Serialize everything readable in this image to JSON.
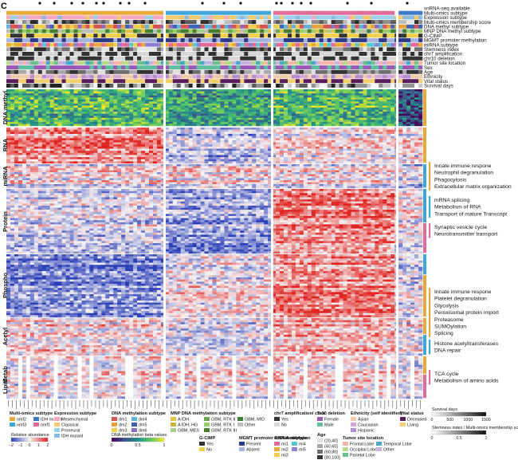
{
  "panel_letter": "C",
  "annotation_tracks": [
    "snRNA-seq available",
    "Multi-omics subtype",
    "Expression subtype",
    "Multi-omics membership score",
    "DNA methyl subtype",
    "MNP DNA methyl subtype",
    "G-CIMP",
    "MGMT promoter methylation",
    "miRNA subtype",
    "Stemness index",
    "chr7 amplification",
    "chr10 deletion",
    "Tumor site location",
    "Sex",
    "Age",
    "Ethnicity",
    "Vital status",
    "Survival days"
  ],
  "omic_blocks": [
    "DNA methyl",
    "RNA",
    "miRNA",
    "Protein",
    "Phospho",
    "Acetyl",
    "Metab",
    "Lipid"
  ],
  "pathway_groups": [
    {
      "lines": [
        "Innate immune respone",
        "Neutrophil degranulation",
        "Phagocytosis",
        "Extracellular matrix organization"
      ],
      "bar_color": "#e8a93a"
    },
    {
      "lines": [
        "mRNA splicing",
        "Metabolism of RNA",
        "Transport of mature Transcript"
      ],
      "bar_color": "#3fa7d8"
    },
    {
      "lines": [
        "Synaptic vesicle cycle",
        "Neurotransmitter transport"
      ],
      "bar_color": "#e26b9a"
    },
    {
      "lines": [
        "Innate immune respone",
        "Platelet degranulation",
        "Glycolysis",
        "Peroxisomal protein import",
        "Proteasome",
        "SUMOylation",
        "Splicing"
      ],
      "bar_color": "#e8a93a"
    },
    {
      "lines": [
        "Histone acetyltransferases",
        "DNA repair"
      ],
      "bar_color": "#3fa7d8"
    },
    {
      "lines": [
        "TCA cycle",
        "Metabolism of amino acids"
      ],
      "bar_color": "#e26b9a"
    }
  ],
  "legends": {
    "multiomics": {
      "title": "Multi-omics subtype",
      "items": [
        {
          "label": "nmf2",
          "color": "#e8a93a"
        },
        {
          "label": "IDH mutant",
          "color": "#3a7bc8"
        },
        {
          "label": "nmf3",
          "color": "#3fa7d8"
        },
        {
          "label": "nmf1",
          "color": "#e26b9a"
        }
      ]
    },
    "expression": {
      "title": "Expression subtype",
      "items": [
        {
          "label": "Mesenchymal",
          "color": "#f2a7c3"
        },
        {
          "label": "Classical",
          "color": "#f4c96a"
        },
        {
          "label": "Proneural",
          "color": "#9ad0ec"
        },
        {
          "label": "IDH mutant",
          "color": "#8ab8e0"
        }
      ]
    },
    "dnamethyl": {
      "title": "DNA methylation subtype",
      "items": [
        {
          "label": "dm1",
          "color": "#d9534f"
        },
        {
          "label": "dm4",
          "color": "#5fb2d9"
        },
        {
          "label": "dm2",
          "color": "#e8a13a"
        },
        {
          "label": "dm5",
          "color": "#3d62b5"
        },
        {
          "label": "dm3",
          "color": "#f0d04a"
        },
        {
          "label": "dm6",
          "color": "#8e6bbf"
        }
      ]
    },
    "mnp": {
      "title": "MNP DNA methylation subtype",
      "items": [
        {
          "label": "A IDH",
          "color": "#e0c44c"
        },
        {
          "label": "GBM, RTK II",
          "color": "#6aa84f"
        },
        {
          "label": "GBM, MID",
          "color": "#3f7f3a"
        },
        {
          "label": "A IDH, HG",
          "color": "#c9b23b"
        },
        {
          "label": "GBM, RTK I",
          "color": "#9ccc65"
        },
        {
          "label": "Other",
          "color": "#bdbdbd"
        },
        {
          "label": "GBM, MES",
          "color": "#a8d08d"
        },
        {
          "label": "GBM, RTK III",
          "color": "#4c7d2c"
        }
      ]
    },
    "chr7": {
      "title": "chr7 amplification/ chr10 deletion",
      "items": [
        {
          "label": "Yes",
          "color": "#333333"
        },
        {
          "label": "No",
          "color": "#d8d8d8"
        }
      ]
    },
    "sex": {
      "title": "Sex",
      "items": [
        {
          "label": "Female",
          "color": "#9b59b6"
        },
        {
          "label": "Male",
          "color": "#5fbfa0"
        }
      ]
    },
    "ethnicity": {
      "title": "Ethnicity (self identified)",
      "items": [
        {
          "label": "Asian",
          "color": "#f3c9a8"
        },
        {
          "label": "Caucasian",
          "color": "#d6a7d8"
        },
        {
          "label": "Hispanic",
          "color": "#b48fd0"
        }
      ]
    },
    "vital": {
      "title": "Vital status",
      "items": [
        {
          "label": "Deceased",
          "color": "#5a1e5e"
        },
        {
          "label": "Living",
          "color": "#f0d070"
        }
      ]
    },
    "gcimp": {
      "title": "G-CIMP",
      "items": [
        {
          "label": "Yes",
          "color": "#333333"
        },
        {
          "label": "No",
          "color": "#f0d04a"
        }
      ]
    },
    "mgmt": {
      "title": "MGMT promoter DNA methylation",
      "items": [
        {
          "label": "Present",
          "color": "#2e3a87"
        },
        {
          "label": "Absent",
          "color": "#a7b4e0"
        }
      ]
    },
    "mirna": {
      "title": "miRNA subtype",
      "items": [
        {
          "label": "mi1",
          "color": "#e26b9a"
        },
        {
          "label": "mi4",
          "color": "#56c7d6"
        },
        {
          "label": "mi2",
          "color": "#e8a93a"
        },
        {
          "label": "mi5",
          "color": "#8f7fd1"
        },
        {
          "label": "mi3",
          "color": "#f0d04a"
        }
      ]
    },
    "age": {
      "title": "Age",
      "items": [
        {
          "label": "(20,40]",
          "color": "#e0e0e0"
        },
        {
          "label": "(40,60]",
          "color": "#a8a8a8"
        },
        {
          "label": "(60,80]",
          "color": "#6e6e6e"
        },
        {
          "label": "(80,100]",
          "color": "#333333"
        }
      ]
    },
    "tumor": {
      "title": "Tumor site location",
      "items": [
        {
          "label": "Frontal Lobe",
          "color": "#f7b6a8"
        },
        {
          "label": "Temporal Lobe",
          "color": "#46a9c9"
        },
        {
          "label": "Occipital Lobe",
          "color": "#b7d98a"
        },
        {
          "label": "Other",
          "color": "#c8b3e0"
        },
        {
          "label": "Parietal Lobe",
          "color": "#6bbf8a"
        }
      ]
    },
    "survival": {
      "title": "Survival days",
      "ticks": [
        "0",
        "500",
        "1000",
        "1500"
      ]
    },
    "stemness": {
      "title": "Stemness index / Multi-omics membership score",
      "ticks": [
        "0",
        "0.5",
        "1"
      ]
    },
    "abundance": {
      "title": "Relative abundance",
      "ticks": [
        "−2",
        "−1",
        "0",
        "1",
        "2"
      ]
    },
    "beta": {
      "title": "DNA methylation beta values",
      "ticks": [
        "0",
        "0.5",
        "1"
      ]
    }
  },
  "colors": {
    "nmf2": "#e8a93a",
    "nmf3": "#3fa7d8",
    "nmf1": "#e26b9a",
    "idh": "#3a7bc8",
    "heat_low": "#2b3fb8",
    "heat_mid": "#f6f3f4",
    "heat_high": "#e0231f"
  }
}
